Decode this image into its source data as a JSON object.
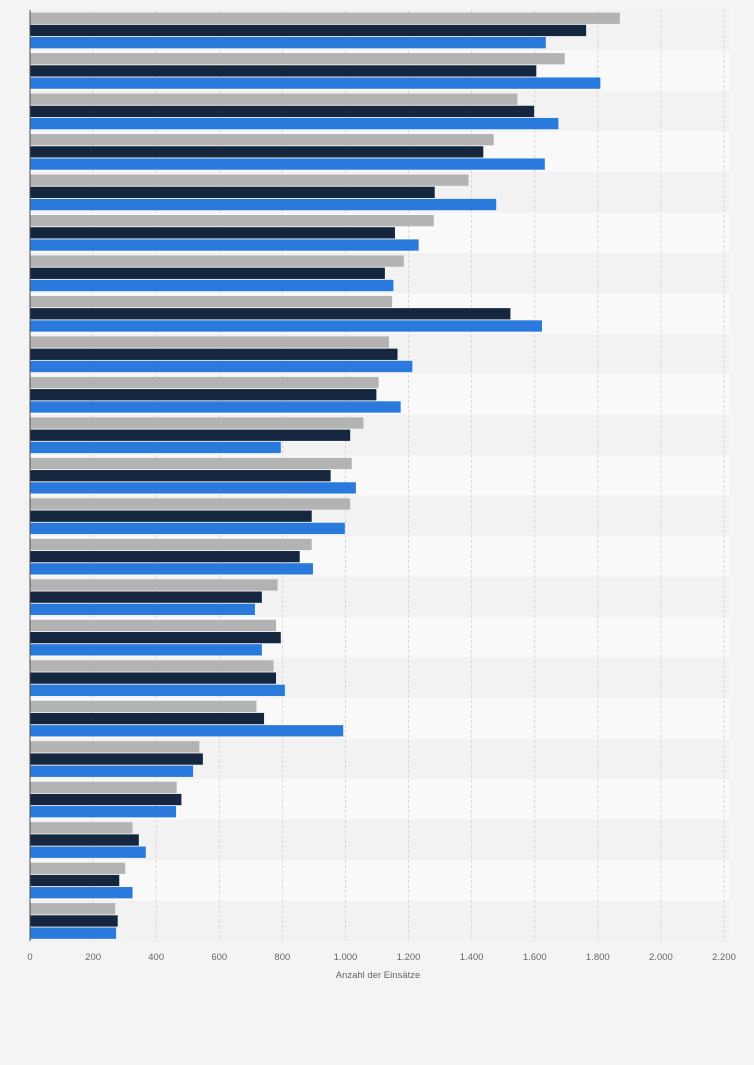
{
  "chart_data": {
    "type": "bar",
    "orientation": "horizontal",
    "xlabel": "Anzahl der Einsätze",
    "xlim": [
      0,
      2200
    ],
    "x_ticks": [
      0,
      200,
      400,
      600,
      800,
      1000,
      1200,
      1400,
      1600,
      1800,
      2000,
      2200
    ],
    "x_tick_labels": [
      "0",
      "200",
      "400",
      "600",
      "800",
      "1.000",
      "1.200",
      "1.400",
      "1.600",
      "1.800",
      "2.000",
      "2.200"
    ],
    "grid": true,
    "legend": false,
    "category_count": 23,
    "series": [
      {
        "color": "#b3b3b3",
        "values": [
          1870,
          1695,
          1545,
          1470,
          1390,
          1280,
          1185,
          1148,
          1138,
          1105,
          1057,
          1020,
          1015,
          893,
          785,
          780,
          772,
          718,
          537,
          465,
          325,
          302,
          270
        ]
      },
      {
        "color": "#14273e",
        "values": [
          1763,
          1605,
          1598,
          1437,
          1283,
          1157,
          1125,
          1523,
          1165,
          1098,
          1015,
          953,
          893,
          855,
          735,
          795,
          780,
          742,
          548,
          480,
          345,
          283,
          278
        ]
      },
      {
        "color": "#2a79dc",
        "values": [
          1635,
          1808,
          1675,
          1632,
          1478,
          1232,
          1152,
          1623,
          1212,
          1175,
          795,
          1033,
          998,
          897,
          713,
          735,
          808,
          993,
          517,
          463,
          367,
          325,
          273
        ]
      }
    ]
  },
  "colors": {
    "page_background": "#f4f4f4",
    "band_light": "#f9f9f9",
    "band_dark": "#f2f2f2",
    "grid": "#d0d0d0",
    "axis": "#4d4d4d",
    "tick_text": "#666666"
  }
}
